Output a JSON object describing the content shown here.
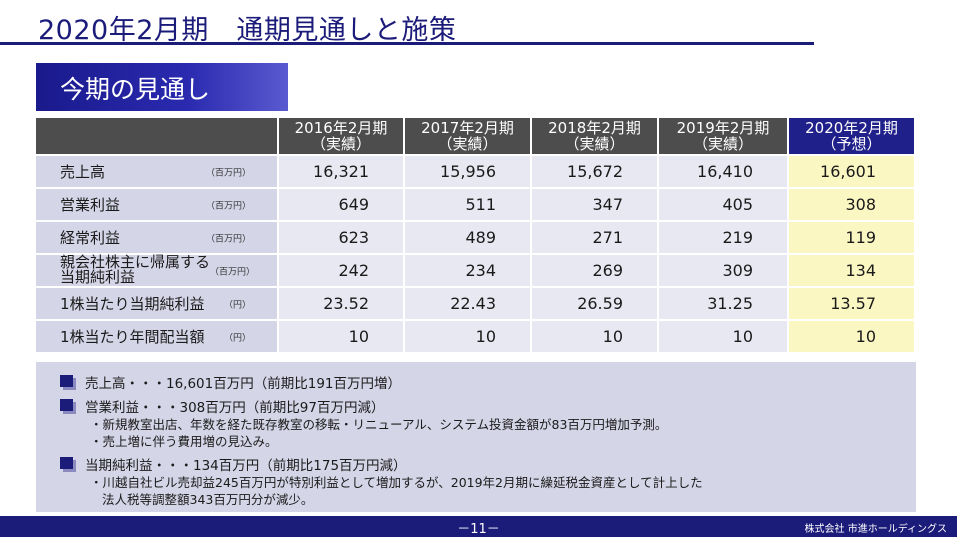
{
  "page_title": "2020年2月期　通期見通しと施策",
  "section_banner": "今期の見通し",
  "table": {
    "columns": [
      {
        "line1": "2016年2月期",
        "line2": "（実績）"
      },
      {
        "line1": "2017年2月期",
        "line2": "（実績）"
      },
      {
        "line1": "2018年2月期",
        "line2": "（実績）"
      },
      {
        "line1": "2019年2月期",
        "line2": "（実績）"
      },
      {
        "line1": "2020年2月期",
        "line2": "（予想）"
      }
    ],
    "rows": [
      {
        "label": "売上高",
        "unit": "（百万円）",
        "values": [
          "16,321",
          "15,956",
          "15,672",
          "16,410",
          "16,601"
        ]
      },
      {
        "label": "営業利益",
        "unit": "（百万円）",
        "values": [
          "649",
          "511",
          "347",
          "405",
          "308"
        ]
      },
      {
        "label": "経常利益",
        "unit": "（百万円）",
        "values": [
          "623",
          "489",
          "271",
          "219",
          "119"
        ]
      },
      {
        "label": "親会社株主に帰属する当期純利益",
        "label_line1": "親会社株主に帰属する",
        "label_line2": "当期純利益",
        "unit": "（百万円）",
        "values": [
          "242",
          "234",
          "269",
          "309",
          "134"
        ]
      },
      {
        "label": "1株当たり当期純利益",
        "unit": "（円）",
        "values": [
          "23.52",
          "22.43",
          "26.59",
          "31.25",
          "13.57"
        ]
      },
      {
        "label": "1株当たり年間配当額",
        "unit": "（円）",
        "values": [
          "10",
          "10",
          "10",
          "10",
          "10"
        ]
      }
    ]
  },
  "summary": {
    "sales": "売上高・・・16,601百万円（前期比191百万円増）",
    "operating": "営業利益・・・308百万円（前期比97百万円減）",
    "operating_note1": "・新規教室出店、年数を経た既存教室の移転・リニューアル、システム投資金額が83百万円増加予測。",
    "operating_note2": "・売上増に伴う費用増の見込み。",
    "net": "当期純利益・・・134百万円（前期比175百万円減）",
    "net_note1": "・川越自社ビル売却益245百万円が特別利益として増加するが、2019年2月期に繰延税金資産として計上した",
    "net_note2": "法人税等調整額343百万円分が減少。"
  },
  "footer": {
    "page_number": "－11－",
    "company": "株式会社 市進ホールディングス"
  },
  "colors": {
    "navy": "#1b1b7a",
    "header_gray": "#4d4d4d",
    "label_lavender": "#d5d5e8",
    "value_cell": "#e8e8f2",
    "forecast_yellow": "#fbf7c3"
  }
}
